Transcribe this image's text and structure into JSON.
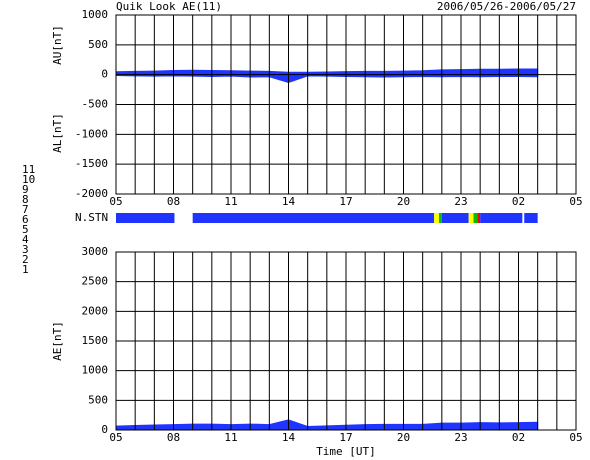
{
  "chart_data": [
    {
      "type": "area",
      "title": "Quik Look AE(11)",
      "subtitle": "2006/05/26-2006/05/27",
      "ylabels": [
        "AU[nT]",
        "AL[nT]"
      ],
      "x": [
        5,
        6,
        7,
        8,
        9,
        10,
        11,
        12,
        13,
        14,
        15,
        16,
        17,
        18,
        19,
        20,
        21,
        22,
        23,
        24,
        25,
        26,
        27
      ],
      "series": [
        {
          "name": "AU",
          "color": "#1f35ff",
          "values": [
            50,
            55,
            60,
            70,
            75,
            70,
            65,
            60,
            55,
            40,
            40,
            45,
            50,
            55,
            55,
            60,
            65,
            80,
            85,
            90,
            90,
            95,
            95
          ]
        },
        {
          "name": "AL",
          "color": "#1f35ff",
          "values": [
            -15,
            -20,
            -25,
            -20,
            -25,
            -30,
            -25,
            -40,
            -35,
            -130,
            -20,
            -25,
            -30,
            -35,
            -40,
            -35,
            -30,
            -35,
            -30,
            -35,
            -30,
            -30,
            -35
          ]
        }
      ],
      "xlim": [
        5,
        29
      ],
      "xticks": [
        {
          "value": 5,
          "label": "05"
        },
        {
          "value": 8,
          "label": "08"
        },
        11,
        14,
        17,
        20,
        23,
        {
          "value": 26,
          "label": "02"
        },
        {
          "value": 29,
          "label": "05"
        }
      ],
      "xgrid": [
        5,
        6,
        7,
        8,
        9,
        10,
        11,
        12,
        13,
        14,
        15,
        16,
        17,
        18,
        19,
        20,
        21,
        22,
        23,
        24,
        25,
        26,
        27,
        28,
        29
      ],
      "ylim": [
        -2000,
        1000
      ],
      "yticks": [
        -2000,
        -1500,
        -1000,
        -500,
        0,
        500,
        1000
      ],
      "grid": true
    },
    {
      "type": "strip",
      "label": "N.STN",
      "xlim": [
        5,
        29
      ],
      "bins": [
        5,
        8.05,
        9.0,
        21.6,
        21.85,
        22.0,
        23.4,
        23.65,
        23.85,
        24.0,
        26.2,
        26.3,
        27
      ],
      "values": [
        9,
        null,
        9,
        8,
        7,
        9,
        8,
        7,
        6,
        9,
        null,
        9
      ],
      "levels": [
        1,
        2,
        3,
        4,
        5,
        6,
        7,
        8,
        9,
        10,
        11
      ],
      "colors": [
        "#000080",
        "#800080",
        "#008080",
        "#c0c0c0",
        "#f0f0f0",
        "#ff0000",
        "#00c000",
        "#ffff00",
        "#1f35ff",
        "#ff00ff",
        "#40ffff"
      ]
    },
    {
      "type": "area",
      "ylabel": "AE[nT]",
      "xlabel": "Time [UT]",
      "x": [
        5,
        6,
        7,
        8,
        9,
        10,
        11,
        12,
        13,
        14,
        15,
        16,
        17,
        18,
        19,
        20,
        21,
        22,
        23,
        24,
        25,
        26,
        27
      ],
      "series": [
        {
          "name": "AE",
          "color": "#1f35ff",
          "values": [
            65,
            75,
            85,
            90,
            100,
            100,
            90,
            100,
            90,
            170,
            60,
            70,
            80,
            90,
            95,
            95,
            95,
            115,
            115,
            125,
            120,
            125,
            130
          ]
        }
      ],
      "xlim": [
        5,
        29
      ],
      "xticks": [
        {
          "value": 5,
          "label": "05"
        },
        {
          "value": 8,
          "label": "08"
        },
        11,
        14,
        17,
        20,
        23,
        {
          "value": 26,
          "label": "02"
        },
        {
          "value": 29,
          "label": "05"
        }
      ],
      "xgrid": [
        5,
        6,
        7,
        8,
        9,
        10,
        11,
        12,
        13,
        14,
        15,
        16,
        17,
        18,
        19,
        20,
        21,
        22,
        23,
        24,
        25,
        26,
        27,
        28,
        29
      ],
      "ylim": [
        0,
        3000
      ],
      "yticks": [
        0,
        500,
        1000,
        1500,
        2000,
        2500,
        3000
      ],
      "grid": true
    }
  ]
}
